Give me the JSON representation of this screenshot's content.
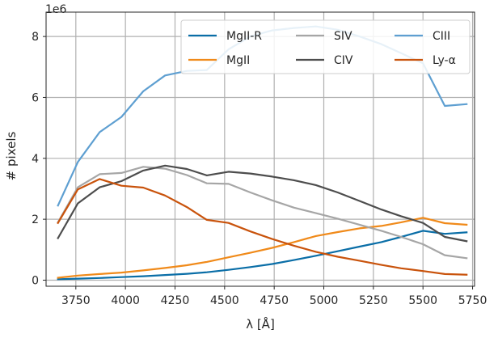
{
  "chart_data": {
    "type": "line",
    "xlabel": "λ [Å]",
    "ylabel": "# pixels",
    "offset_label": "1e6",
    "xlim": [
      3600,
      5760
    ],
    "ylim": [
      -0.2,
      8.8
    ],
    "x_ticks": [
      3750,
      4000,
      4250,
      4500,
      4750,
      5000,
      5250,
      5500,
      5750
    ],
    "y_ticks": [
      0,
      2,
      4,
      6,
      8
    ],
    "grid": true,
    "legend_position": "top-right",
    "x": [
      3660,
      3760,
      3870,
      3980,
      4090,
      4200,
      4310,
      4410,
      4520,
      4630,
      4740,
      4850,
      4960,
      5070,
      5180,
      5290,
      5390,
      5500,
      5610,
      5720
    ],
    "series": [
      {
        "name": "MgII-R",
        "color": "#0a6ea7",
        "values": [
          0.03,
          0.05,
          0.07,
          0.1,
          0.13,
          0.17,
          0.21,
          0.26,
          0.34,
          0.43,
          0.53,
          0.66,
          0.8,
          0.95,
          1.1,
          1.25,
          1.42,
          1.62,
          1.52,
          1.57
        ]
      },
      {
        "name": "MgII",
        "color": "#f08a1a",
        "values": [
          0.08,
          0.15,
          0.2,
          0.25,
          0.32,
          0.4,
          0.49,
          0.6,
          0.75,
          0.9,
          1.06,
          1.25,
          1.45,
          1.58,
          1.7,
          1.78,
          1.9,
          2.05,
          1.87,
          1.82
        ]
      },
      {
        "name": "SIV",
        "color": "#a6a6a6",
        "values": [
          1.9,
          3.05,
          3.48,
          3.52,
          3.72,
          3.66,
          3.45,
          3.18,
          3.16,
          2.88,
          2.62,
          2.38,
          2.2,
          2.02,
          1.82,
          1.62,
          1.42,
          1.18,
          0.82,
          0.72
        ]
      },
      {
        "name": "CIV",
        "color": "#4d4d4d",
        "values": [
          1.38,
          2.52,
          3.05,
          3.25,
          3.6,
          3.76,
          3.65,
          3.44,
          3.56,
          3.5,
          3.4,
          3.28,
          3.12,
          2.88,
          2.6,
          2.32,
          2.1,
          1.88,
          1.42,
          1.28
        ]
      },
      {
        "name": "CIII",
        "color": "#5e9fd1",
        "values": [
          2.45,
          3.88,
          4.86,
          5.36,
          6.2,
          6.72,
          6.87,
          6.9,
          7.58,
          8.0,
          8.2,
          8.28,
          8.33,
          8.22,
          8.0,
          7.75,
          7.45,
          7.12,
          5.72,
          5.78
        ]
      },
      {
        "name": "Ly-α",
        "color": "#c9530c",
        "values": [
          1.88,
          2.98,
          3.32,
          3.1,
          3.04,
          2.78,
          2.4,
          1.98,
          1.88,
          1.6,
          1.35,
          1.13,
          0.93,
          0.77,
          0.64,
          0.5,
          0.39,
          0.3,
          0.2,
          0.18
        ]
      }
    ]
  }
}
